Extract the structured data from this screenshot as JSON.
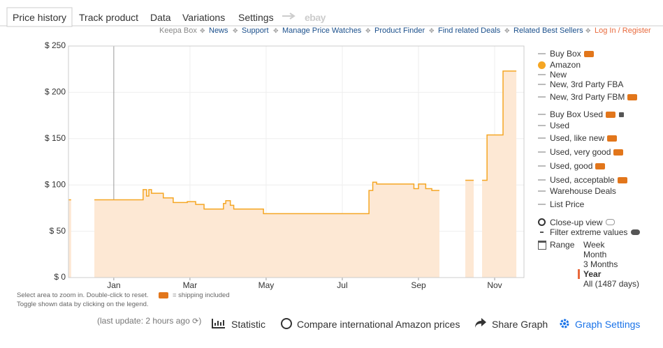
{
  "tabs": [
    "Price history",
    "Track product",
    "Data",
    "Variations",
    "Settings",
    "ebay"
  ],
  "links": [
    "Keepa Box",
    "News",
    "Support",
    "Manage Price Watches",
    "Product Finder",
    "Find related Deals",
    "Related Best Sellers",
    "Log In / Register"
  ],
  "chart_data": {
    "type": "line",
    "x": [
      -1.19,
      -1.12,
      null,
      -0.51,
      0.77,
      0.77,
      0.86,
      0.86,
      0.92,
      0.92,
      0.99,
      0.99,
      1.3,
      1.3,
      1.56,
      1.56,
      1.93,
      1.93,
      2.15,
      2.15,
      2.37,
      2.37,
      2.88,
      2.88,
      2.94,
      2.94,
      3.06,
      3.06,
      3.15,
      3.15,
      3.93,
      3.93,
      6.7,
      6.7,
      6.8,
      6.8,
      6.9,
      6.9,
      7.88,
      7.88,
      8.0,
      8.0,
      8.19,
      8.19,
      8.35,
      8.35,
      8.55,
      null,
      9.23,
      9.45,
      null,
      9.67,
      9.8,
      9.8,
      10.22,
      10.22,
      10.57
    ],
    "series": [
      {
        "name": "Amazon",
        "color": "#f5a623",
        "values": [
          84,
          84,
          null,
          84,
          84,
          95,
          95,
          88,
          88,
          95,
          95,
          91,
          91,
          86,
          86,
          81,
          81,
          82,
          82,
          79,
          79,
          74,
          74,
          80,
          80,
          83,
          83,
          78,
          78,
          74,
          74,
          69,
          69,
          94,
          94,
          103,
          103,
          101,
          101,
          96,
          96,
          101,
          101,
          96,
          96,
          94,
          94,
          null,
          105,
          105,
          null,
          105,
          105,
          154,
          154,
          223,
          223
        ]
      }
    ],
    "area_color": "#fde8d4",
    "xlim": [
      -1.19,
      10.77
    ],
    "xticks": [
      {
        "value": 0,
        "label": "Jan"
      },
      {
        "value": 2,
        "label": "Mar"
      },
      {
        "value": 4,
        "label": "May"
      },
      {
        "value": 6,
        "label": "Jul"
      },
      {
        "value": 8,
        "label": "Sep"
      },
      {
        "value": 10,
        "label": "Nov"
      }
    ],
    "ylim": [
      0,
      250
    ],
    "yticks": [
      {
        "value": 0,
        "label": "$ 0"
      },
      {
        "value": 50,
        "label": "$ 50"
      },
      {
        "value": 100,
        "label": "$ 100"
      },
      {
        "value": 150,
        "label": "$ 150"
      },
      {
        "value": 200,
        "label": "$ 200"
      },
      {
        "value": 250,
        "label": "$ 250"
      }
    ],
    "grid": true
  },
  "legend": [
    "Buy Box",
    "New",
    "New, 3rd Party FBA",
    "New, 3rd Party FBM",
    "Buy Box Used",
    "Used",
    "Used, like new",
    "Used, very good",
    "Used, good",
    "Used, acceptable",
    "Warehouse Deals",
    "List Price"
  ],
  "options": {
    "close_up": "Close-up view",
    "filter": "Filter extreme values",
    "range_label": "Range",
    "ranges": [
      "Week",
      "Month",
      "3 Months",
      "Year",
      "All (1487 days)"
    ]
  },
  "notes": [
    "Select area to zoom in. Double-click to reset.",
    "= shipping included",
    "Toggle shown data by clicking on the legend."
  ],
  "footer": {
    "last_update": "(last update: 2 hours ago",
    "close": ")",
    "statistic": "Statistic",
    "compare": "Compare international Amazon prices",
    "share": "Share Graph",
    "settings": "Graph Settings"
  }
}
